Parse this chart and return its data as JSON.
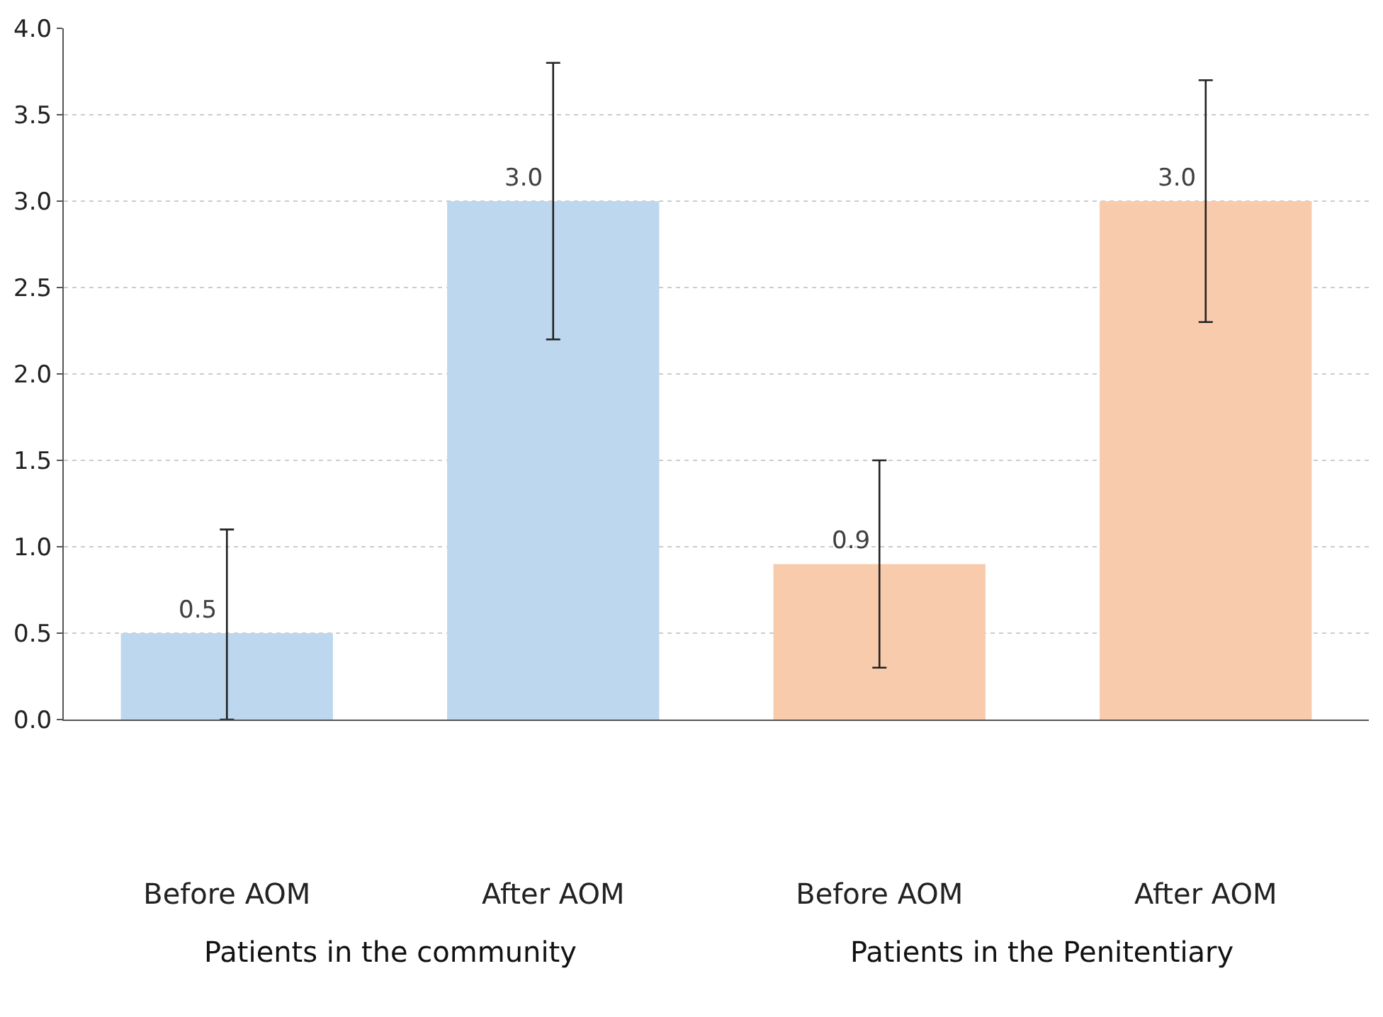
{
  "chart_data": {
    "type": "bar",
    "categories": [
      "Before AOM",
      "After AOM",
      "Before AOM",
      "After AOM"
    ],
    "values": [
      0.5,
      3.0,
      0.9,
      3.0
    ],
    "colors": [
      "#bdd7ee",
      "#bdd7ee",
      "#f8cbad",
      "#f8cbad"
    ],
    "errors": [
      [
        0.0,
        1.1
      ],
      [
        2.2,
        3.8
      ],
      [
        0.3,
        1.5
      ],
      [
        2.3,
        3.7
      ]
    ],
    "value_labels": [
      "0.5",
      "3.0",
      "0.9",
      "3.0"
    ],
    "annotations": [
      "Patients in the community",
      "Patients in the Penitentiary"
    ],
    "ylim": [
      0,
      4
    ],
    "yticks": [
      {
        "value": 0,
        "label": "0.0"
      },
      {
        "value": 0.5,
        "label": "0.5"
      },
      {
        "value": 1,
        "label": "1.0"
      },
      {
        "value": 1.5,
        "label": "1.5"
      },
      {
        "value": 2,
        "label": "2.0"
      },
      {
        "value": 2.5,
        "label": "2.5"
      },
      {
        "value": 3,
        "label": "3.0"
      },
      {
        "value": 3.5,
        "label": "3.5"
      },
      {
        "value": 4,
        "label": "4.0"
      }
    ],
    "grid": "y"
  }
}
